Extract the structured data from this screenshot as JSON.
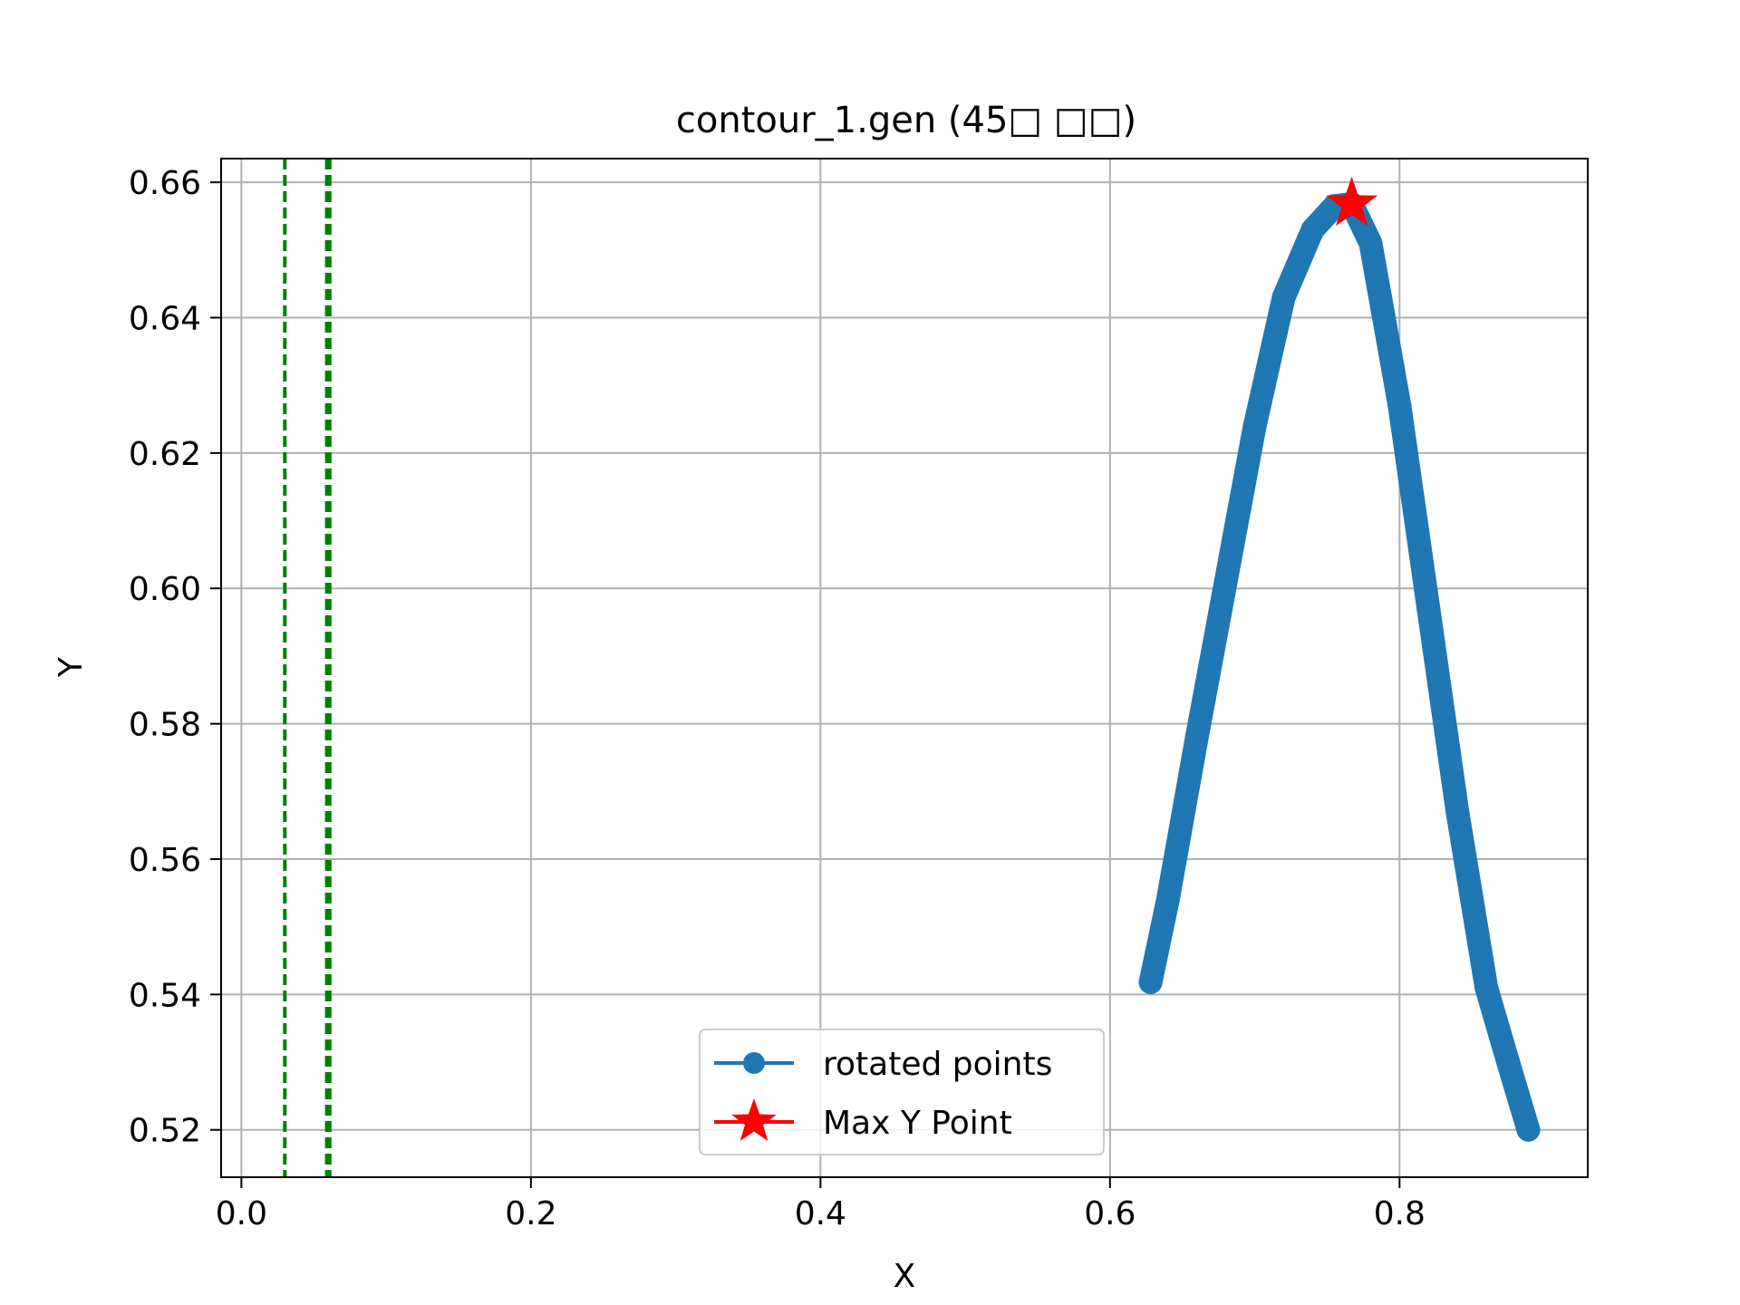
{
  "chart_data": {
    "type": "line",
    "title": "contour_1.gen (45□ □□)",
    "xlabel": "X",
    "ylabel": "Y",
    "xlim": [
      -0.014,
      0.93
    ],
    "ylim": [
      0.513,
      0.6635
    ],
    "xticks": [
      0.0,
      0.2,
      0.4,
      0.6,
      0.8
    ],
    "xtick_labels": [
      "0.0",
      "0.2",
      "0.4",
      "0.6",
      "0.8"
    ],
    "yticks": [
      0.52,
      0.54,
      0.56,
      0.58,
      0.6,
      0.62,
      0.64,
      0.66
    ],
    "ytick_labels": [
      "0.52",
      "0.54",
      "0.56",
      "0.58",
      "0.60",
      "0.62",
      "0.64",
      "0.66"
    ],
    "grid": true,
    "legend_position": "lower-center",
    "series": [
      {
        "name": "rotated points",
        "color": "#1f77b4",
        "marker": "circle",
        "x": [
          0.628,
          0.64,
          0.66,
          0.68,
          0.7,
          0.72,
          0.74,
          0.755,
          0.767,
          0.78,
          0.8,
          0.82,
          0.84,
          0.86,
          0.875,
          0.889
        ],
        "y": [
          0.5418,
          0.554,
          0.578,
          0.601,
          0.624,
          0.643,
          0.653,
          0.6565,
          0.6568,
          0.651,
          0.627,
          0.597,
          0.567,
          0.541,
          0.53,
          0.52
        ]
      },
      {
        "name": "Max Y Point",
        "color": "#ff0000",
        "marker": "star",
        "x": [
          0.767
        ],
        "y": [
          0.6568
        ]
      }
    ],
    "vlines": [
      {
        "x": 0.03,
        "color": "#008000",
        "style": "dashed"
      },
      {
        "x": 0.059,
        "color": "#008000",
        "style": "dashed"
      },
      {
        "x": 0.061,
        "color": "#008000",
        "style": "dashed"
      }
    ]
  }
}
